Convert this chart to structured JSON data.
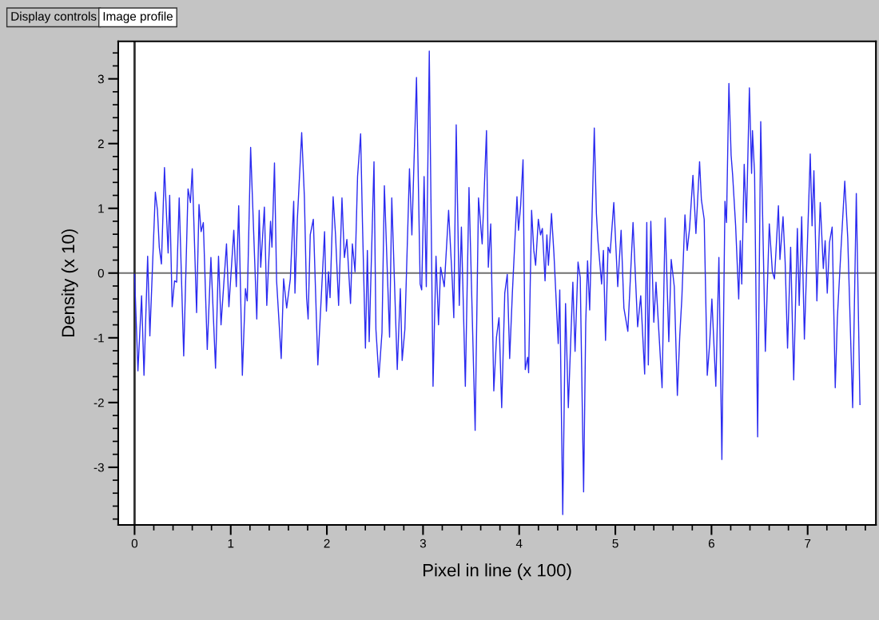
{
  "chart_data": {
    "type": "line",
    "xlabel": "Pixel in line (x 100)",
    "ylabel": "Density (x 10)",
    "annotations": [
      "Display controls",
      "Image profile"
    ],
    "xlim": [
      -0.17,
      7.71
    ],
    "ylim": [
      -3.89,
      3.58
    ],
    "xticks": [
      0,
      1,
      2,
      3,
      4,
      5,
      6,
      7
    ],
    "yticks": [
      -3,
      -2,
      -1,
      0,
      1,
      2,
      3
    ],
    "grid": false,
    "legend": false,
    "marker": "none",
    "line_style": "solid",
    "ref_lines": [
      {
        "axis": "y",
        "value": 0,
        "color": "#707070"
      },
      {
        "axis": "x",
        "value": 0,
        "color": "#303030"
      }
    ],
    "series": [
      {
        "color": "#2b2bf0",
        "x": [
          0.0,
          0.035,
          0.073,
          0.098,
          0.136,
          0.159,
          0.216,
          0.238,
          0.257,
          0.279,
          0.311,
          0.349,
          0.365,
          0.391,
          0.416,
          0.438,
          0.464,
          0.511,
          0.556,
          0.581,
          0.6,
          0.645,
          0.67,
          0.692,
          0.715,
          0.756,
          0.794,
          0.842,
          0.873,
          0.899,
          0.956,
          0.981,
          1.032,
          1.058,
          1.083,
          1.121,
          1.153,
          1.172,
          1.207,
          1.271,
          1.296,
          1.312,
          1.35,
          1.375,
          1.414,
          1.429,
          1.455,
          1.477,
          1.525,
          1.55,
          1.582,
          1.62,
          1.655,
          1.668,
          1.693,
          1.738,
          1.766,
          1.789,
          1.805,
          1.827,
          1.859,
          1.906,
          1.976,
          1.995,
          2.017,
          2.033,
          2.065,
          2.09,
          2.122,
          2.157,
          2.182,
          2.208,
          2.246,
          2.265,
          2.293,
          2.319,
          2.351,
          2.37,
          2.401,
          2.421,
          2.44,
          2.49,
          2.51,
          2.541,
          2.573,
          2.598,
          2.652,
          2.675,
          2.732,
          2.764,
          2.783,
          2.811,
          2.859,
          2.884,
          2.932,
          2.97,
          2.986,
          3.011,
          3.034,
          3.065,
          3.104,
          3.135,
          3.161,
          3.183,
          3.221,
          3.266,
          3.304,
          3.32,
          3.345,
          3.377,
          3.399,
          3.44,
          3.478,
          3.542,
          3.577,
          3.615,
          3.66,
          3.679,
          3.704,
          3.736,
          3.764,
          3.79,
          3.818,
          3.85,
          3.876,
          3.901,
          3.929,
          3.977,
          3.993,
          4.015,
          4.04,
          4.063,
          4.088,
          4.098,
          4.129,
          4.152,
          4.171,
          4.199,
          4.222,
          4.241,
          4.269,
          4.288,
          4.304,
          4.336,
          4.361,
          4.406,
          4.422,
          4.453,
          4.482,
          4.511,
          4.558,
          4.581,
          4.612,
          4.635,
          4.67,
          4.692,
          4.711,
          4.733,
          4.781,
          4.803,
          4.819,
          4.857,
          4.876,
          4.898,
          4.924,
          4.946,
          4.984,
          5.025,
          5.06,
          5.089,
          5.13,
          5.184,
          5.232,
          5.264,
          5.305,
          5.327,
          5.343,
          5.369,
          5.4,
          5.423,
          5.486,
          5.518,
          5.556,
          5.581,
          5.613,
          5.645,
          5.67,
          5.692,
          5.724,
          5.747,
          5.772,
          5.807,
          5.838,
          5.876,
          5.895,
          5.924,
          5.956,
          5.981,
          6.004,
          6.045,
          6.077,
          6.108,
          6.14,
          6.156,
          6.181,
          6.204,
          6.22,
          6.251,
          6.283,
          6.299,
          6.315,
          6.34,
          6.363,
          6.394,
          6.417,
          6.426,
          6.448,
          6.48,
          6.512,
          6.56,
          6.601,
          6.633,
          6.655,
          6.696,
          6.712,
          6.744,
          6.766,
          6.791,
          6.823,
          6.855,
          6.893,
          6.912,
          6.938,
          6.966,
          7.027,
          7.046,
          7.065,
          7.096,
          7.131,
          7.163,
          7.182,
          7.204,
          7.227,
          7.255,
          7.287,
          7.309,
          7.347,
          7.386,
          7.417,
          7.468,
          7.506,
          7.544
        ],
        "values": [
          -0.02,
          -1.51,
          -0.35,
          -1.58,
          0.26,
          -0.97,
          1.25,
          0.97,
          0.4,
          0.14,
          1.63,
          0.31,
          1.2,
          -0.52,
          -0.12,
          -0.14,
          1.16,
          -1.28,
          1.3,
          1.09,
          1.61,
          -0.61,
          1.06,
          0.64,
          0.78,
          -1.18,
          0.24,
          -1.47,
          0.26,
          -0.8,
          0.45,
          -0.52,
          0.66,
          -0.21,
          1.04,
          -1.58,
          -0.24,
          -0.43,
          1.94,
          -0.71,
          0.97,
          0.09,
          1.02,
          -0.5,
          0.8,
          0.4,
          1.7,
          -0.12,
          -1.32,
          -0.09,
          -0.54,
          -0.09,
          1.11,
          -0.31,
          0.83,
          2.17,
          1.18,
          -0.38,
          -0.71,
          0.59,
          0.83,
          -1.42,
          0.64,
          -0.59,
          0.02,
          -0.38,
          1.18,
          0.59,
          -0.5,
          1.16,
          0.24,
          0.52,
          -0.47,
          0.45,
          0.02,
          1.49,
          2.15,
          0.78,
          -1.16,
          0.35,
          -1.06,
          1.72,
          -0.87,
          -1.61,
          -0.92,
          1.35,
          -0.99,
          1.16,
          -1.49,
          -0.24,
          -1.35,
          -0.87,
          1.61,
          0.59,
          3.02,
          -0.17,
          -0.26,
          1.49,
          -0.21,
          3.43,
          -1.75,
          0.26,
          -0.8,
          0.09,
          -0.21,
          0.97,
          -0.12,
          -0.69,
          2.29,
          -0.5,
          0.71,
          -1.75,
          1.32,
          -2.43,
          1.16,
          0.45,
          2.2,
          0.09,
          0.76,
          -1.82,
          -0.99,
          -0.69,
          -2.08,
          -0.31,
          -0.02,
          -1.32,
          -0.31,
          1.18,
          0.66,
          1.04,
          1.75,
          -1.49,
          -1.3,
          -1.54,
          0.97,
          0.35,
          0.12,
          0.83,
          0.59,
          0.69,
          -0.12,
          0.59,
          0.12,
          0.92,
          0.31,
          -1.09,
          -0.26,
          -3.73,
          -0.47,
          -2.08,
          -0.14,
          -1.21,
          0.17,
          -0.07,
          -3.38,
          -0.78,
          0.19,
          -0.57,
          2.24,
          0.92,
          0.5,
          -0.17,
          0.35,
          -1.04,
          0.4,
          0.31,
          1.09,
          -0.21,
          0.66,
          -0.54,
          -0.9,
          0.78,
          -0.83,
          -0.35,
          -1.56,
          0.78,
          -1.42,
          0.8,
          -0.76,
          -0.14,
          -1.77,
          0.85,
          -1.06,
          0.21,
          -0.21,
          -1.89,
          -0.97,
          -0.38,
          0.9,
          0.35,
          0.69,
          1.51,
          0.61,
          1.72,
          1.13,
          0.83,
          -1.58,
          -1.09,
          -0.4,
          -1.75,
          0.24,
          -2.88,
          1.11,
          0.78,
          2.93,
          1.82,
          1.51,
          0.73,
          -0.4,
          0.5,
          -0.17,
          1.68,
          0.78,
          2.86,
          1.54,
          2.2,
          1.54,
          -2.53,
          2.34,
          -1.21,
          0.76,
          0.02,
          -0.09,
          1.04,
          0.21,
          0.87,
          0.17,
          -1.16,
          0.4,
          -1.65,
          0.69,
          -0.5,
          0.87,
          -1.02,
          1.84,
          0.73,
          1.58,
          -0.43,
          1.09,
          0.07,
          0.5,
          -0.31,
          0.47,
          0.71,
          -1.77,
          -0.69,
          0.38,
          1.42,
          0.54,
          -2.08,
          1.23,
          -2.03
        ]
      }
    ]
  }
}
